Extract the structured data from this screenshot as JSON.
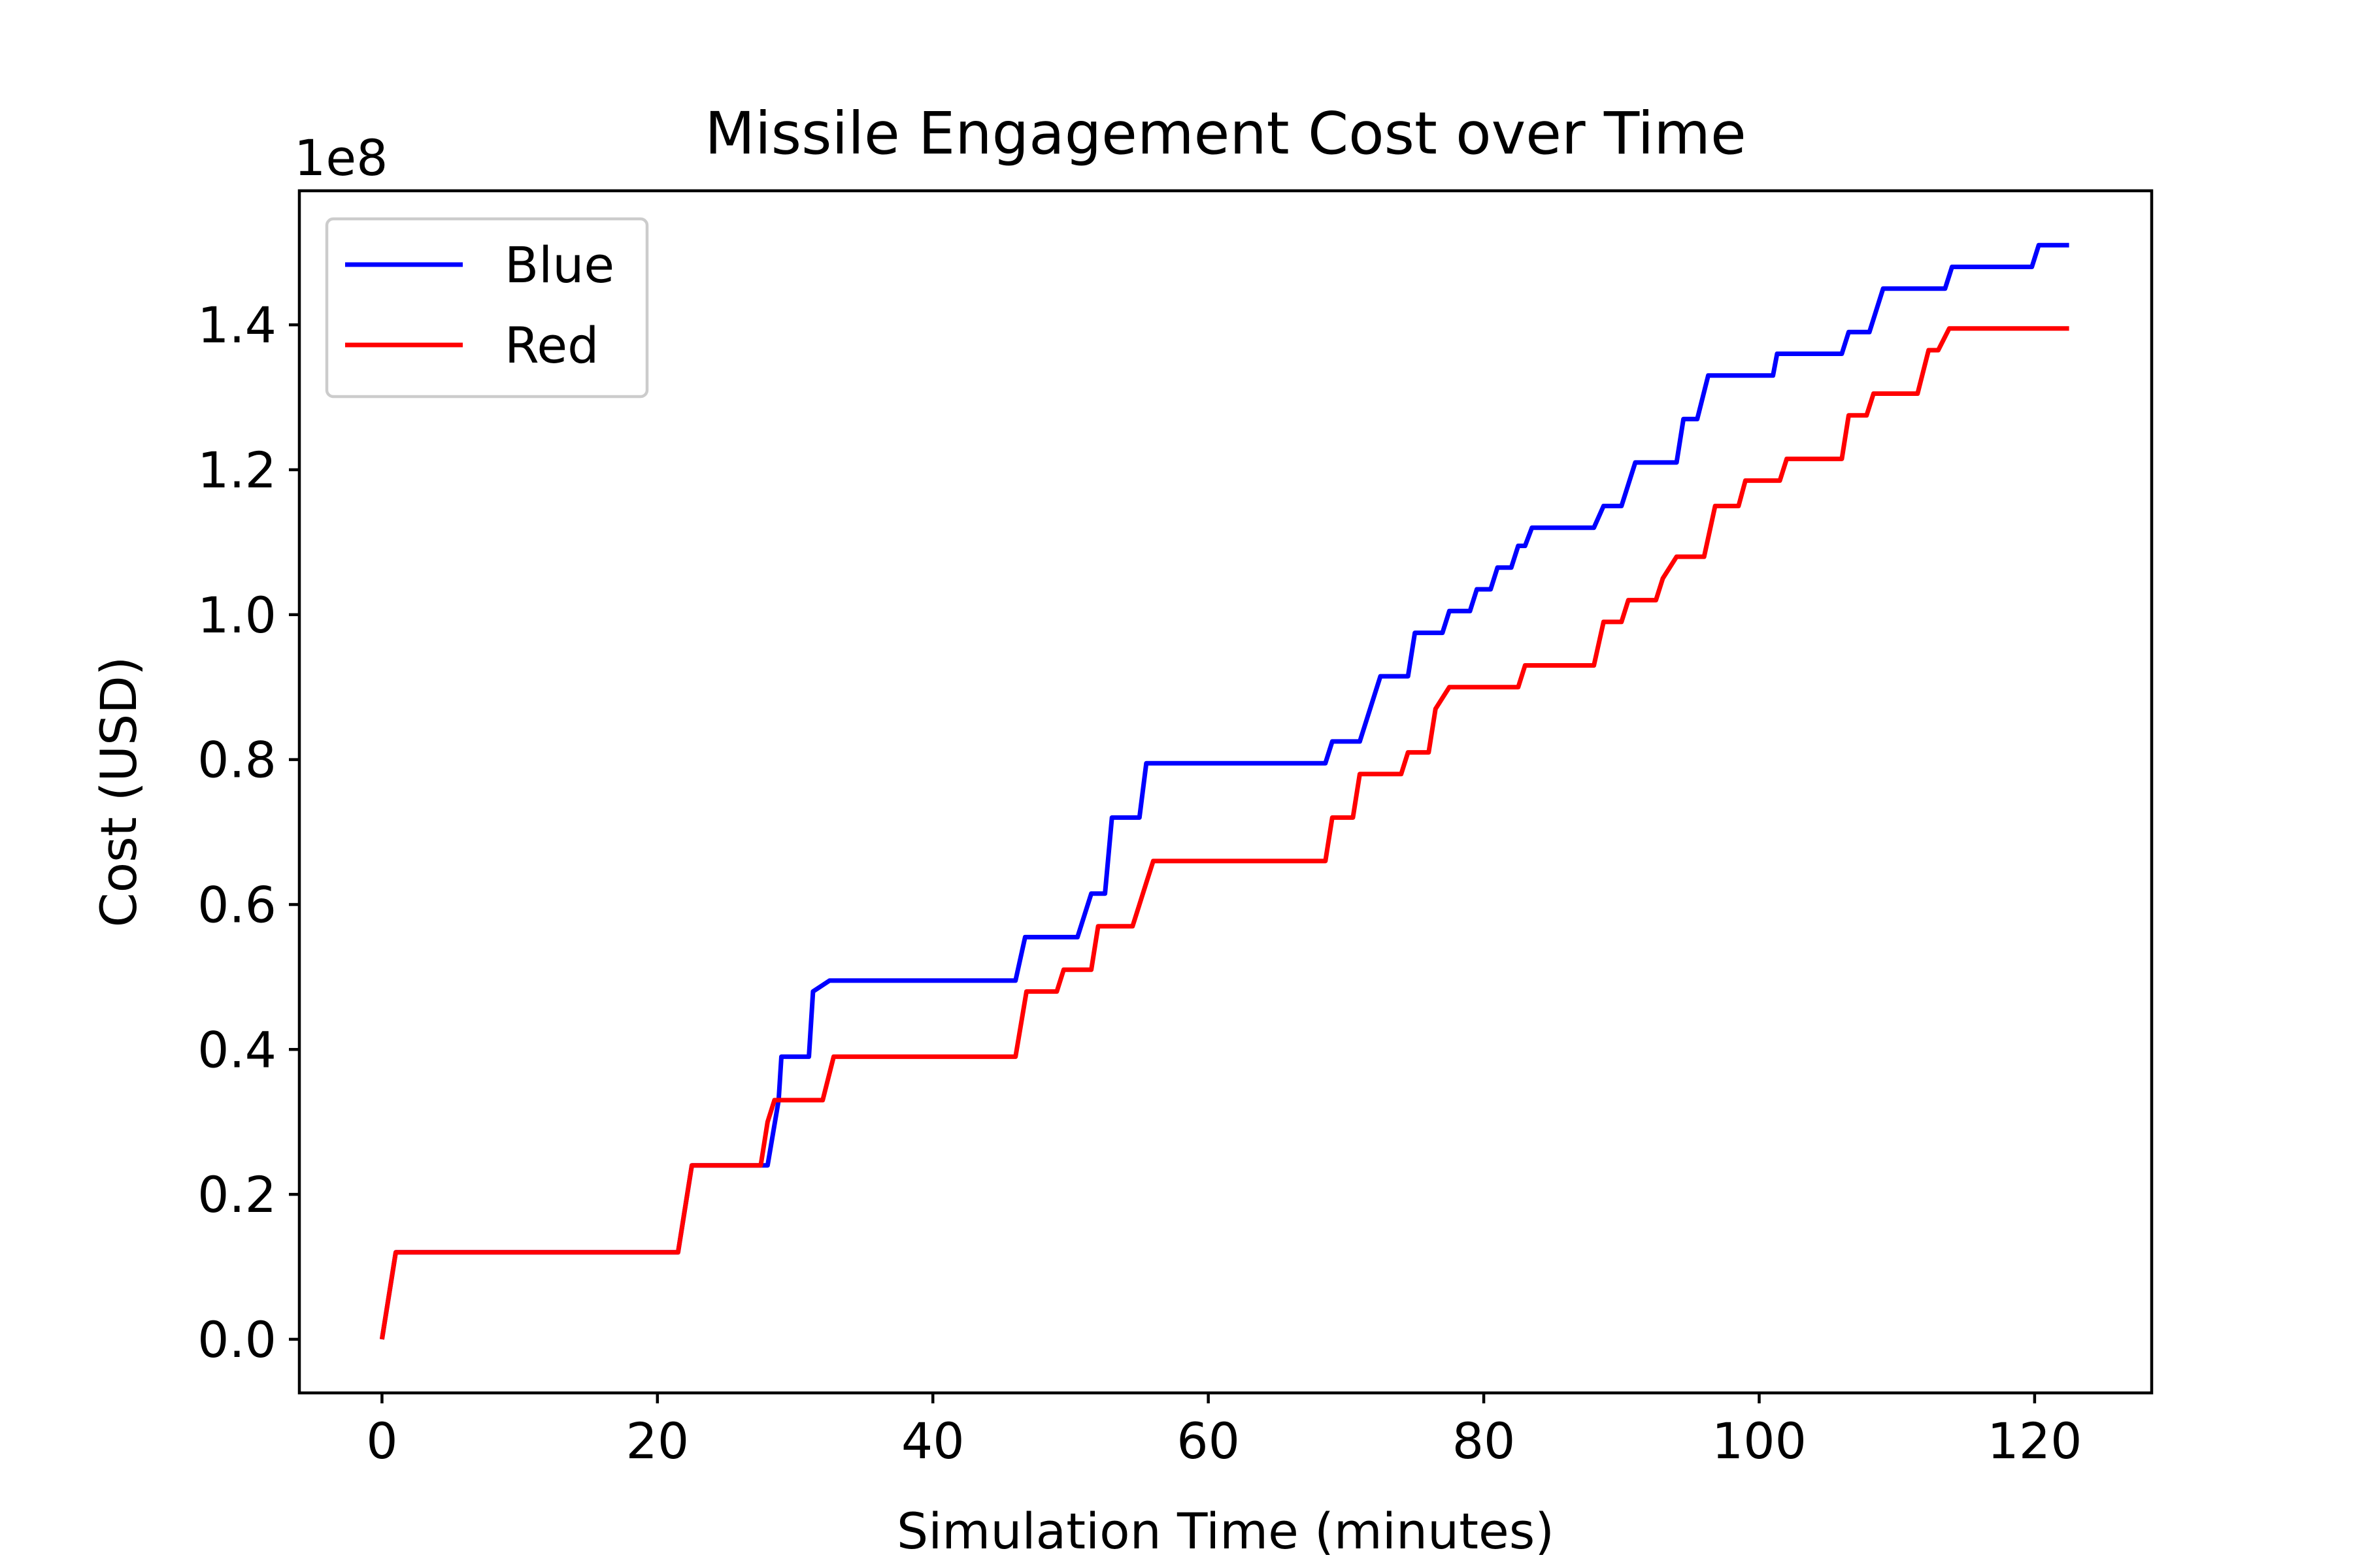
{
  "chart_data": {
    "type": "line",
    "title": "Missile Engagement Cost over Time",
    "xlabel": "Simulation Time (minutes)",
    "ylabel": "Cost (USD)",
    "y_offset_label": "1e8",
    "y_scale_factor": 100000000,
    "xlim": [
      -6,
      128.5
    ],
    "ylim": [
      -7400000,
      158500000
    ],
    "x_ticks": [
      0,
      20,
      40,
      60,
      80,
      100,
      120
    ],
    "x_tick_labels": [
      "0",
      "20",
      "40",
      "60",
      "80",
      "100",
      "120"
    ],
    "y_ticks": [
      0,
      20000000,
      40000000,
      60000000,
      80000000,
      100000000,
      120000000,
      140000000
    ],
    "y_tick_labels": [
      "0.0",
      "0.2",
      "0.4",
      "0.6",
      "0.8",
      "1.0",
      "1.2",
      "1.4"
    ],
    "grid": false,
    "legend_position": "upper-left",
    "series": [
      {
        "name": "Blue",
        "color": "#0000ff",
        "points": [
          [
            0,
            0
          ],
          [
            1,
            12000000
          ],
          [
            21.5,
            12000000
          ],
          [
            22.5,
            24000000
          ],
          [
            28,
            24000000
          ],
          [
            28.8,
            33000000
          ],
          [
            29,
            39000000
          ],
          [
            31,
            39000000
          ],
          [
            31.3,
            48000000
          ],
          [
            32.5,
            49500000
          ],
          [
            46,
            49500000
          ],
          [
            46.7,
            55500000
          ],
          [
            50.5,
            55500000
          ],
          [
            51.5,
            61500000
          ],
          [
            52.5,
            61500000
          ],
          [
            53,
            72000000
          ],
          [
            55,
            72000000
          ],
          [
            55.5,
            79500000
          ],
          [
            68.5,
            79500000
          ],
          [
            69,
            82500000
          ],
          [
            71,
            82500000
          ],
          [
            72.5,
            91500000
          ],
          [
            74.5,
            91500000
          ],
          [
            75,
            97500000
          ],
          [
            77,
            97500000
          ],
          [
            77.5,
            100500000
          ],
          [
            79,
            100500000
          ],
          [
            79.5,
            103500000
          ],
          [
            80.5,
            103500000
          ],
          [
            81,
            106500000
          ],
          [
            82,
            106500000
          ],
          [
            82.5,
            109500000
          ],
          [
            83,
            109500000
          ],
          [
            83.5,
            112000000
          ],
          [
            88,
            112000000
          ],
          [
            88.7,
            115000000
          ],
          [
            90,
            115000000
          ],
          [
            91,
            121000000
          ],
          [
            94,
            121000000
          ],
          [
            94.5,
            127000000
          ],
          [
            95.5,
            127000000
          ],
          [
            96.3,
            133000000
          ],
          [
            101,
            133000000
          ],
          [
            101.3,
            136000000
          ],
          [
            106,
            136000000
          ],
          [
            106.5,
            139000000
          ],
          [
            108,
            139000000
          ],
          [
            109,
            145000000
          ],
          [
            113.5,
            145000000
          ],
          [
            114,
            148000000
          ],
          [
            119.8,
            148000000
          ],
          [
            120.3,
            151000000
          ],
          [
            122.5,
            151000000
          ]
        ]
      },
      {
        "name": "Red",
        "color": "#ff0000",
        "points": [
          [
            0,
            0
          ],
          [
            1,
            12000000
          ],
          [
            21.5,
            12000000
          ],
          [
            22.5,
            24000000
          ],
          [
            27.5,
            24000000
          ],
          [
            28,
            30000000
          ],
          [
            28.5,
            33000000
          ],
          [
            32,
            33000000
          ],
          [
            32.8,
            39000000
          ],
          [
            46,
            39000000
          ],
          [
            46.8,
            48000000
          ],
          [
            49,
            48000000
          ],
          [
            49.5,
            51000000
          ],
          [
            51.5,
            51000000
          ],
          [
            52,
            57000000
          ],
          [
            54.5,
            57000000
          ],
          [
            55,
            60000000
          ],
          [
            55.5,
            63000000
          ],
          [
            56,
            66000000
          ],
          [
            68.5,
            66000000
          ],
          [
            69,
            72000000
          ],
          [
            70.5,
            72000000
          ],
          [
            71,
            78000000
          ],
          [
            74,
            78000000
          ],
          [
            74.5,
            81000000
          ],
          [
            76,
            81000000
          ],
          [
            76.5,
            87000000
          ],
          [
            77.5,
            90000000
          ],
          [
            82.5,
            90000000
          ],
          [
            83,
            93000000
          ],
          [
            88,
            93000000
          ],
          [
            88.7,
            99000000
          ],
          [
            90,
            99000000
          ],
          [
            90.5,
            102000000
          ],
          [
            92.5,
            102000000
          ],
          [
            93,
            105000000
          ],
          [
            94,
            108000000
          ],
          [
            96,
            108000000
          ],
          [
            96.8,
            115000000
          ],
          [
            98.5,
            115000000
          ],
          [
            99,
            118500000
          ],
          [
            101.5,
            118500000
          ],
          [
            102,
            121500000
          ],
          [
            106,
            121500000
          ],
          [
            106.5,
            127500000
          ],
          [
            107.8,
            127500000
          ],
          [
            108.3,
            130500000
          ],
          [
            111.5,
            130500000
          ],
          [
            112.3,
            136500000
          ],
          [
            113,
            136500000
          ],
          [
            113.8,
            139500000
          ],
          [
            122.5,
            139500000
          ]
        ]
      }
    ]
  }
}
